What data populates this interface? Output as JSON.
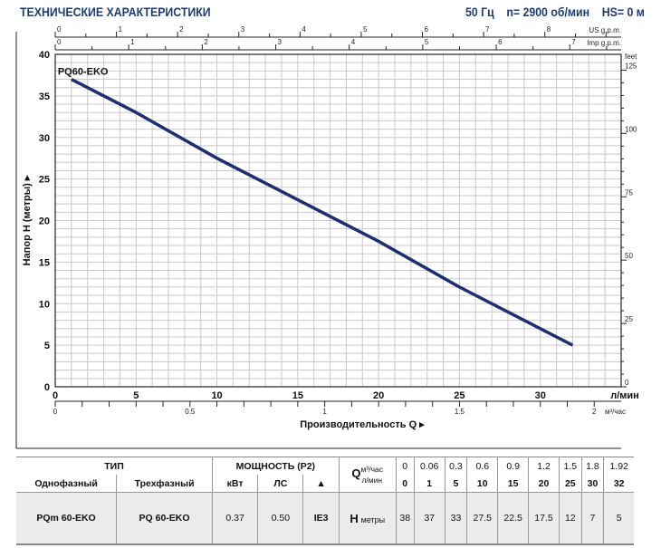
{
  "header": {
    "title": "ТЕХНИЧЕСКИЕ ХАРАКТЕРИСТИКИ",
    "params": "50 Гц    n= 2900 об/мин    HS= 0 м"
  },
  "chart_data": {
    "type": "line",
    "series": [
      {
        "name": "PQ60-EKO",
        "x": [
          1,
          5,
          10,
          15,
          20,
          25,
          30,
          32
        ],
        "y": [
          37,
          33,
          27.5,
          22.5,
          17.5,
          12,
          7,
          5
        ]
      }
    ],
    "xlabel": "Производительность Q",
    "x_unit": "л/мин",
    "xlim": [
      0,
      35
    ],
    "x_ticks": [
      0,
      5,
      10,
      15,
      20,
      25,
      30
    ],
    "ylabel": "Напор H (метры)",
    "ylim": [
      0,
      40
    ],
    "y_ticks": [
      0,
      5,
      10,
      15,
      20,
      25,
      30,
      35,
      40
    ],
    "grid": true,
    "secondary_axes": {
      "us_gpm": {
        "label": "US g.p.m.",
        "ticks": [
          0,
          1,
          2,
          3,
          4,
          5,
          6,
          7,
          8
        ]
      },
      "imp_gpm": {
        "label": "Imp g.p.m.",
        "ticks": [
          0,
          1,
          2,
          3,
          4,
          5,
          6,
          7
        ]
      },
      "m3h": {
        "label": "м³/час",
        "ticks": [
          0,
          0.5,
          1,
          1.5,
          2
        ]
      },
      "feet": {
        "label": "feet",
        "ticks": [
          0,
          25,
          50,
          75,
          100,
          125
        ]
      }
    }
  },
  "table": {
    "type_header": "ТИП",
    "power_header": "МОЩНОСТЬ (P2)",
    "single_phase": "Однофазный",
    "three_phase": "Трехфазный",
    "kw": "кВт",
    "hp": "ЛС",
    "ie_symbol": "▲",
    "q_label": "Q",
    "q_unit_m3": "м³/час",
    "q_unit_l": "л/мин",
    "h_label": "H",
    "h_unit": "метры",
    "q_m3": [
      "0",
      "0.06",
      "0.3",
      "0.6",
      "0.9",
      "1.2",
      "1.5",
      "1.8",
      "1.92"
    ],
    "q_l": [
      "0",
      "1",
      "5",
      "10",
      "15",
      "20",
      "25",
      "30",
      "32"
    ],
    "rows": [
      {
        "single": "PQm 60-EKO",
        "three": "PQ 60-EKO",
        "kw": "0.37",
        "hp": "0.50",
        "ie": "IE3",
        "h": [
          "38",
          "37",
          "33",
          "27.5",
          "22.5",
          "17.5",
          "12",
          "7",
          "5"
        ]
      }
    ]
  }
}
